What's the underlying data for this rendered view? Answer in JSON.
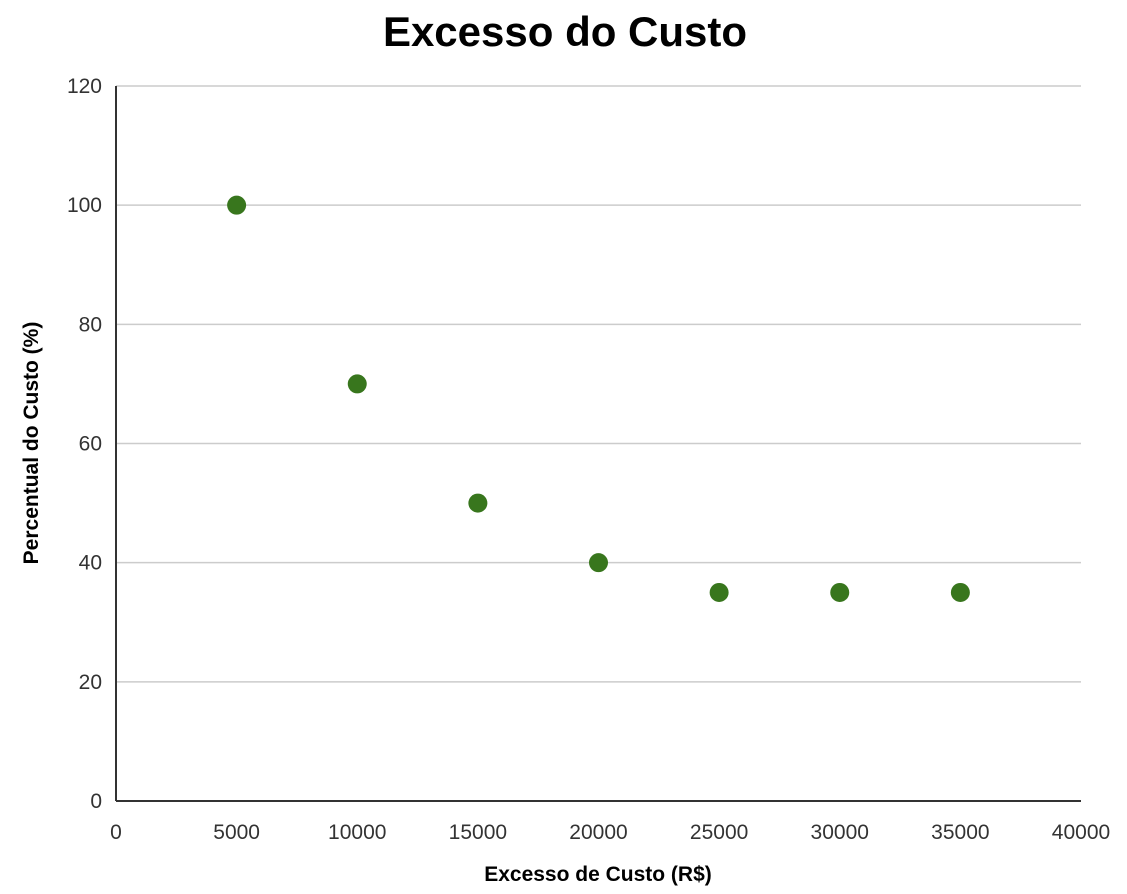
{
  "chart_data": {
    "type": "scatter",
    "title": "Excesso do Custo",
    "xlabel": "Excesso de Custo (R$)",
    "ylabel": "Percentual do Custo (%)",
    "xlim": [
      0,
      40000
    ],
    "ylim": [
      0,
      120
    ],
    "x_ticks": [
      0,
      5000,
      10000,
      15000,
      20000,
      25000,
      30000,
      35000,
      40000
    ],
    "y_ticks": [
      0,
      20,
      40,
      60,
      80,
      100,
      120
    ],
    "grid": "horizontal",
    "legend": "none",
    "point_color": "#38761d",
    "series": [
      {
        "x": [
          5000,
          10000,
          15000,
          20000,
          25000,
          30000,
          35000
        ],
        "y": [
          100,
          70,
          50,
          40,
          35,
          35,
          35
        ]
      }
    ]
  }
}
